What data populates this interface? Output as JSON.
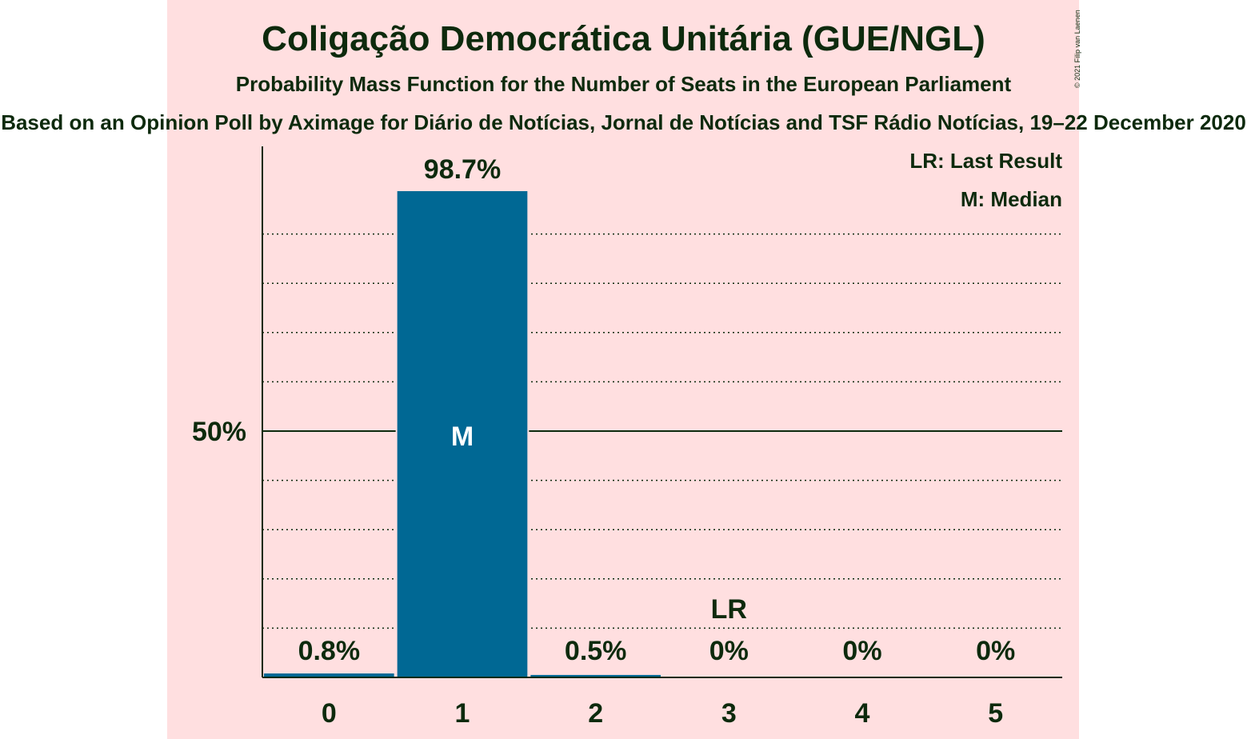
{
  "title": "Coligação Democrática Unitária (GUE/NGL)",
  "subtitle": "Probability Mass Function for the Number of Seats in the European Parliament",
  "source": "Based on an Opinion Poll by Aximage for Diário de Notícias, Jornal de Notícias and TSF Rádio Notícias, 19–22 December 2020",
  "copyright": "© 2021 Filip van Laenen",
  "colors": {
    "background": "#ffdfe0",
    "bar": "#006894",
    "text": "#0d2a0d"
  },
  "legend": {
    "last_result": "LR: Last Result",
    "median": "M: Median"
  },
  "chart_data": {
    "type": "bar",
    "categories": [
      "0",
      "1",
      "2",
      "3",
      "4",
      "5"
    ],
    "values": [
      0.8,
      98.7,
      0.5,
      0,
      0,
      0
    ],
    "value_labels": [
      "0.8%",
      "98.7%",
      "0.5%",
      "0%",
      "0%",
      "0%"
    ],
    "ylim": [
      0,
      108
    ],
    "ytick_labels": [
      {
        "value": 50,
        "label": "50%"
      }
    ],
    "gridlines": [
      10,
      20,
      30,
      40,
      60,
      70,
      80,
      90
    ],
    "median_category": "1",
    "median_marker": "M",
    "last_result_category": "3",
    "last_result_marker": "LR"
  }
}
